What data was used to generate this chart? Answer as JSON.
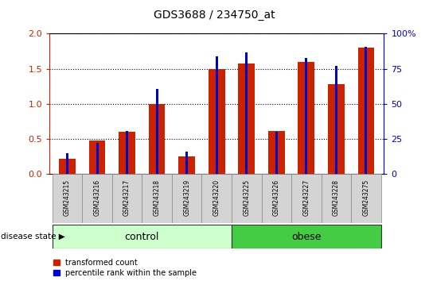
{
  "title": "GDS3688 / 234750_at",
  "samples": [
    "GSM243215",
    "GSM243216",
    "GSM243217",
    "GSM243218",
    "GSM243219",
    "GSM243220",
    "GSM243225",
    "GSM243226",
    "GSM243227",
    "GSM243228",
    "GSM243275"
  ],
  "red_values": [
    0.22,
    0.48,
    0.6,
    1.0,
    0.25,
    1.5,
    1.58,
    0.62,
    1.6,
    1.28,
    1.8
  ],
  "blue_values": [
    0.3,
    0.45,
    0.62,
    1.22,
    0.32,
    1.68,
    1.73,
    0.6,
    1.65,
    1.54,
    1.81
  ],
  "red_color": "#cc2200",
  "blue_color": "#0000cc",
  "ylim_left": [
    0,
    2
  ],
  "ylim_right": [
    0,
    100
  ],
  "yticks_left": [
    0,
    0.5,
    1.0,
    1.5,
    2.0
  ],
  "yticks_right": [
    0,
    25,
    50,
    75,
    100
  ],
  "control_count": 6,
  "obese_count": 5,
  "control_label": "control",
  "obese_label": "obese",
  "group_label": "disease state",
  "legend_red": "transformed count",
  "legend_blue": "percentile rank within the sample",
  "control_color": "#ccffcc",
  "obese_color": "#44cc44",
  "background_color": "#ffffff",
  "red_bar_width": 0.55,
  "blue_bar_width": 0.08
}
